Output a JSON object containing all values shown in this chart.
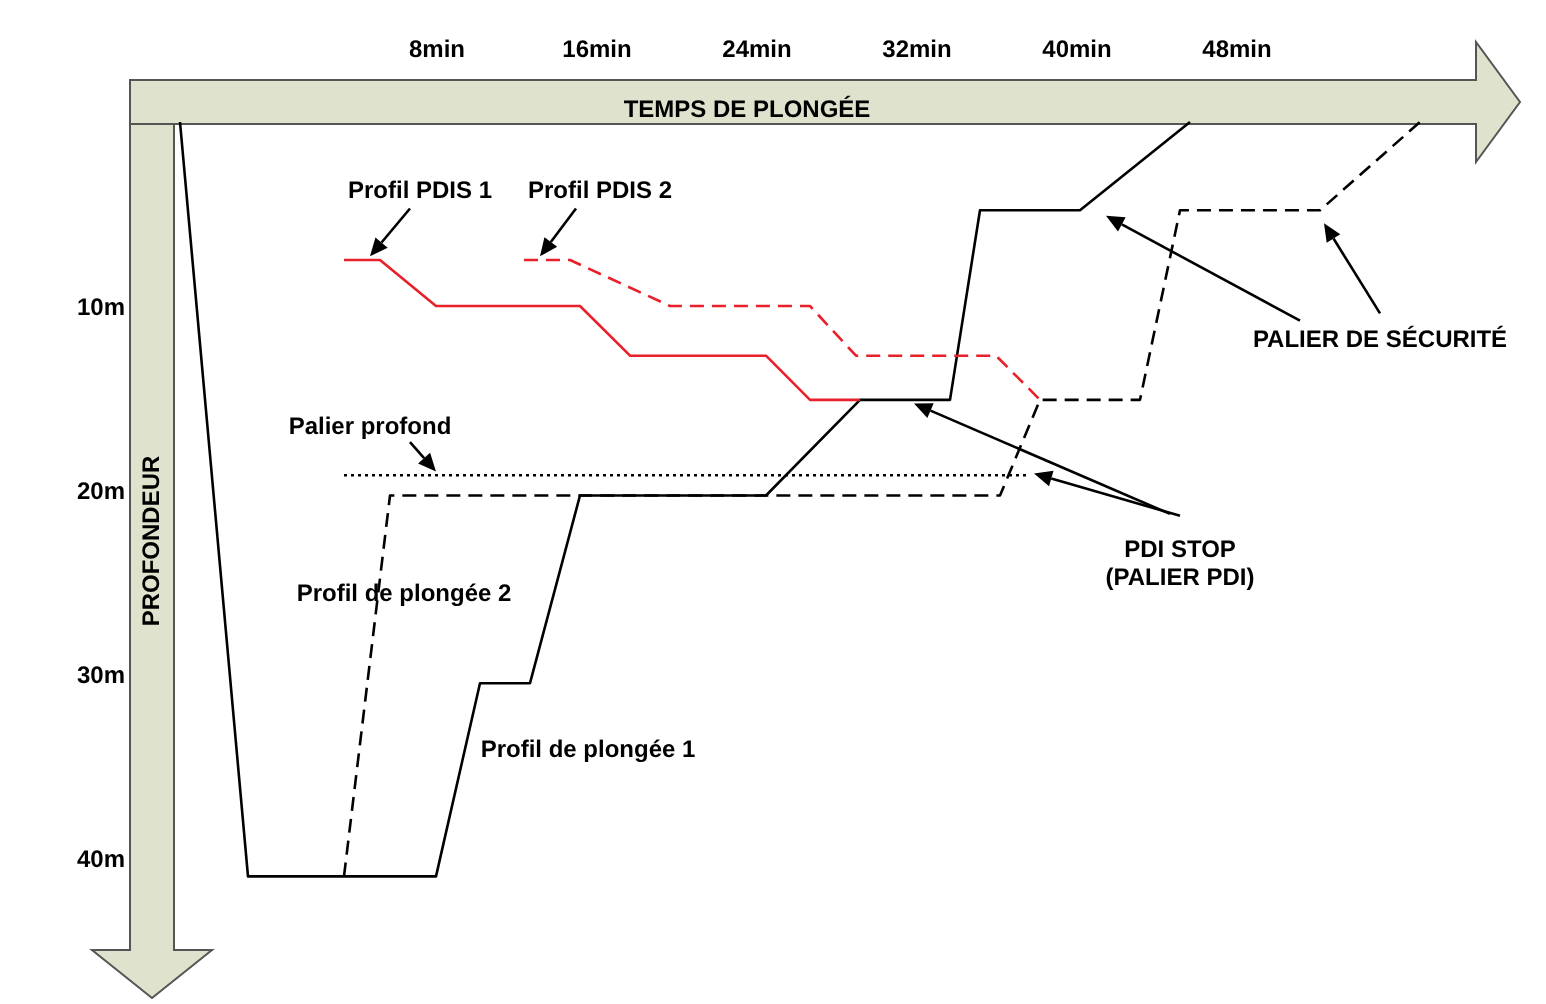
{
  "chart_data": {
    "type": "line",
    "xlabel": "TEMPS DE PLONGÉE",
    "ylabel": "PROFONDEUR",
    "xlim": [
      -5,
      60
    ],
    "ylim": [
      45,
      0
    ],
    "xticks": [
      {
        "value": 8,
        "label": "8min"
      },
      {
        "value": 16,
        "label": "16min"
      },
      {
        "value": 24,
        "label": "24min"
      },
      {
        "value": 32,
        "label": "32min"
      },
      {
        "value": 40,
        "label": "40min"
      },
      {
        "value": 48,
        "label": "48min"
      }
    ],
    "yticks": [
      {
        "value": 10,
        "label": "10m"
      },
      {
        "value": 20,
        "label": "20m"
      },
      {
        "value": 30,
        "label": "30m"
      },
      {
        "value": 40,
        "label": "40m"
      }
    ],
    "series": [
      {
        "name": "Profil de plongée 1",
        "color": "#000000",
        "line_style": "solid",
        "x": [
          -4.8,
          -1.4,
          8,
          10.2,
          12.7,
          15.2,
          24.5,
          29.2,
          33.7,
          35.2,
          40.2,
          45.7
        ],
        "values": [
          0,
          41,
          41,
          30.5,
          30.5,
          20.3,
          20.3,
          15.1,
          15.1,
          4.8,
          4.8,
          0
        ]
      },
      {
        "name": "Profil de plongée 2",
        "color": "#000000",
        "line_style": "dashed",
        "x": [
          3.4,
          5.7,
          36.2,
          38.2,
          43.2,
          45.2,
          52.2,
          57.2
        ],
        "values": [
          41,
          20.3,
          20.3,
          15.1,
          15.1,
          4.8,
          4.8,
          0
        ]
      },
      {
        "name": "Profil PDIS 1",
        "color": "#e8202a",
        "line_style": "solid",
        "x": [
          3.4,
          5.2,
          8,
          15.2,
          17.7,
          24.5,
          26.7,
          29.2
        ],
        "values": [
          7.5,
          7.5,
          10,
          10,
          12.7,
          12.7,
          15.1,
          15.1
        ]
      },
      {
        "name": "Profil PDIS 2",
        "color": "#e8202a",
        "line_style": "dashed",
        "x": [
          12.4,
          14.7,
          19.7,
          26.7,
          29,
          36,
          38.2
        ],
        "values": [
          7.5,
          7.5,
          10,
          10,
          12.7,
          12.7,
          15.1
        ]
      },
      {
        "name": "Palier profond",
        "color": "#000000",
        "line_style": "dotted",
        "x": [
          3.4,
          37.7
        ],
        "values": [
          19.2,
          19.2
        ]
      }
    ],
    "annotations": [
      "PDI STOP\n(PALIER PDI)",
      "PALIER DE SÉCURITÉ"
    ]
  }
}
